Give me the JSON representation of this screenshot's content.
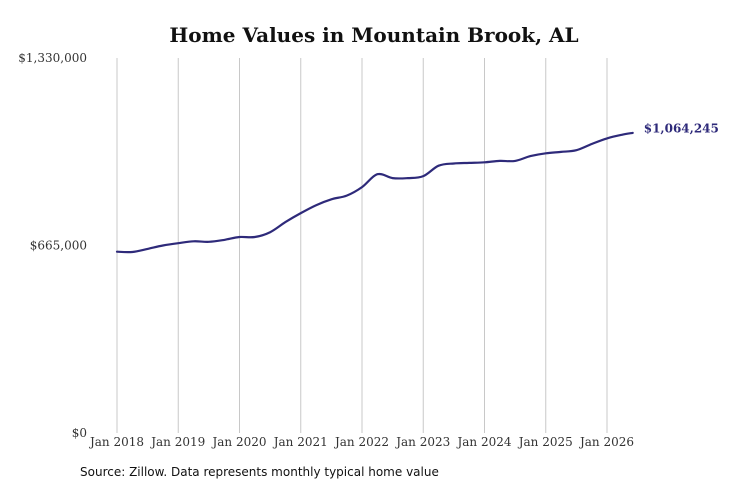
{
  "chart_data": {
    "type": "line",
    "title": "Home Values in Mountain Brook, AL",
    "source": "Source: Zillow. Data represents monthly typical home value",
    "ylim": [
      0,
      1330000
    ],
    "yticks": [
      {
        "value": 0,
        "label": "$0"
      },
      {
        "value": 665000,
        "label": "$665,000"
      },
      {
        "value": 1330000,
        "label": "$1,330,000"
      }
    ],
    "xticks": [
      {
        "value": 2018.0,
        "label": "Jan 2018"
      },
      {
        "value": 2019.0,
        "label": "Jan 2019"
      },
      {
        "value": 2020.0,
        "label": "Jan 2020"
      },
      {
        "value": 2021.0,
        "label": "Jan 2021"
      },
      {
        "value": 2022.0,
        "label": "Jan 2022"
      },
      {
        "value": 2023.0,
        "label": "Jan 2023"
      },
      {
        "value": 2024.0,
        "label": "Jan 2024"
      },
      {
        "value": 2025.0,
        "label": "Jan 2025"
      },
      {
        "value": 2026.0,
        "label": "Jan 2026"
      }
    ],
    "grid": "vertical",
    "line_color": "#2e2a7a",
    "end_label": "$1,064,245",
    "series": [
      {
        "x": [
          2018.0,
          2018.25,
          2018.5,
          2018.75,
          2019.0,
          2019.25,
          2019.5,
          2019.75,
          2020.0,
          2020.25,
          2020.5,
          2020.75,
          2021.0,
          2021.25,
          2021.5,
          2021.75,
          2022.0,
          2022.25,
          2022.5,
          2022.75,
          2023.0,
          2023.25,
          2023.5,
          2023.75,
          2024.0,
          2024.25,
          2024.5,
          2024.75,
          2025.0,
          2025.25,
          2025.5,
          2025.75,
          2026.0,
          2026.25,
          2026.42
        ],
        "y": [
          643000,
          642000,
          653000,
          665000,
          673000,
          680000,
          678000,
          685000,
          695000,
          695000,
          712000,
          748000,
          780000,
          808000,
          829000,
          842000,
          872000,
          918000,
          904000,
          904000,
          911000,
          948000,
          956000,
          958000,
          960000,
          965000,
          965000,
          982000,
          992000,
          997000,
          1003000,
          1025000,
          1045000,
          1058000,
          1064245
        ]
      }
    ]
  }
}
